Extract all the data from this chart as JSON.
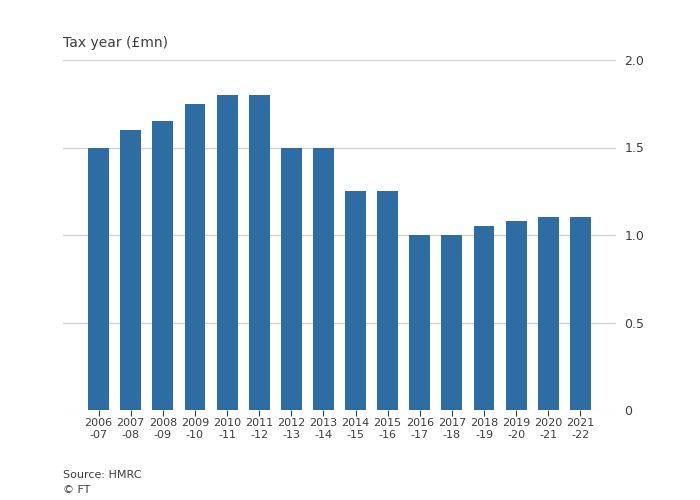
{
  "categories": [
    "2006\n-07",
    "2007\n-08",
    "2008\n-09",
    "2009\n-10",
    "2010\n-11",
    "2011\n-12",
    "2012\n-13",
    "2013\n-14",
    "2014\n-15",
    "2015\n-16",
    "2016\n-17",
    "2017\n-18",
    "2018\n-19",
    "2019\n-20",
    "2020\n-21",
    "2021\n-22"
  ],
  "values": [
    1.5,
    1.6,
    1.65,
    1.75,
    1.8,
    1.8,
    1.5,
    1.5,
    1.25,
    1.25,
    1.0,
    1.0,
    1.05,
    1.08,
    1.1,
    1.1
  ],
  "bar_color": "#2e6da4",
  "ylabel": "Tax year (£mn)",
  "ylim": [
    0,
    2.0
  ],
  "yticks": [
    0,
    0.5,
    1.0,
    1.5,
    2.0
  ],
  "source_text": "Source: HMRC\n© FT",
  "background_color": "#ffffff",
  "text_color": "#3d3d3d",
  "grid_color": "#cccccc",
  "bar_width": 0.65
}
